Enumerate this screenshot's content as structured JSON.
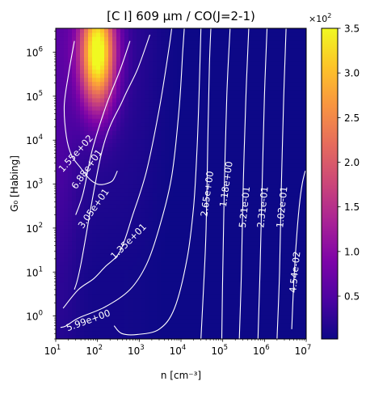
{
  "chart_data": {
    "type": "heatmap",
    "title": "[C I] 609 μm / CO(J=2-1)",
    "xlabel": "n [cm⁻³]",
    "ylabel": "G₀ [Habing]",
    "x_scale": "log",
    "y_scale": "log",
    "xlim": [
      10,
      10000000
    ],
    "ylim": [
      0.3,
      3500000
    ],
    "x_ticks": [
      {
        "value": 10,
        "base": "10",
        "exp": "1"
      },
      {
        "value": 100,
        "base": "10",
        "exp": "2"
      },
      {
        "value": 1000,
        "base": "10",
        "exp": "3"
      },
      {
        "value": 10000,
        "base": "10",
        "exp": "4"
      },
      {
        "value": 100000,
        "base": "10",
        "exp": "5"
      },
      {
        "value": 1000000,
        "base": "10",
        "exp": "6"
      },
      {
        "value": 10000000,
        "base": "10",
        "exp": "7"
      }
    ],
    "y_ticks": [
      {
        "value": 1,
        "base": "10",
        "exp": "0"
      },
      {
        "value": 10,
        "base": "10",
        "exp": "1"
      },
      {
        "value": 100,
        "base": "10",
        "exp": "2"
      },
      {
        "value": 1000,
        "base": "10",
        "exp": "3"
      },
      {
        "value": 10000,
        "base": "10",
        "exp": "4"
      },
      {
        "value": 100000,
        "base": "10",
        "exp": "5"
      },
      {
        "value": 1000000,
        "base": "10",
        "exp": "6"
      }
    ],
    "colorbar": {
      "colormap": "plasma",
      "range": [
        0.02,
        3.5
      ],
      "ticks": [
        "0.5",
        "1.0",
        "1.5",
        "2.0",
        "2.5",
        "3.0",
        "3.5"
      ],
      "tick_values": [
        0.5,
        1.0,
        1.5,
        2.0,
        2.5,
        3.0,
        3.5
      ],
      "multiplier_base": "×10",
      "multiplier_exp": "2"
    },
    "peak": {
      "n": 100,
      "g0": 1000000,
      "value": 350
    },
    "contours": [
      {
        "label": "1.55e+02",
        "value": 155,
        "label_at": [
          30,
          5000
        ],
        "label_angle": -48,
        "points": [
          [
            28,
            1800000
          ],
          [
            20,
            300000
          ],
          [
            16,
            60000
          ],
          [
            18,
            12000
          ],
          [
            24,
            4500
          ],
          [
            40,
            2300
          ],
          [
            65,
            1300
          ],
          [
            100,
            1000
          ],
          [
            150,
            1000
          ],
          [
            230,
            1200
          ],
          [
            300,
            2000
          ]
        ]
      },
      {
        "label": "6.88e+01",
        "value": 68.8,
        "label_at": [
          55,
          2200
        ],
        "label_angle": -55,
        "points": [
          [
            30,
            200
          ],
          [
            45,
            600
          ],
          [
            75,
            6000
          ],
          [
            160,
            60000
          ],
          [
            350,
            400000
          ],
          [
            600,
            1800000
          ]
        ]
      },
      {
        "label": "3.05e+01",
        "value": 30.5,
        "label_at": [
          80,
          280
        ],
        "label_angle": -55,
        "points": [
          [
            28,
            4
          ],
          [
            40,
            15
          ],
          [
            130,
            6000
          ],
          [
            400,
            80000
          ],
          [
            900,
            400000
          ],
          [
            1800,
            2500000
          ]
        ]
      },
      {
        "label": "1.35e+01",
        "value": 13.5,
        "label_at": [
          550,
          50
        ],
        "label_angle": -45,
        "points": [
          [
            15,
            1.5
          ],
          [
            35,
            4
          ],
          [
            80,
            7
          ],
          [
            150,
            13
          ],
          [
            350,
            30
          ],
          [
            700,
            200
          ],
          [
            1500,
            2000
          ],
          [
            3000,
            50000
          ],
          [
            5000,
            1000000
          ],
          [
            6000,
            3500000
          ]
        ]
      },
      {
        "label": "5.99e+00",
        "value": 5.99,
        "label_at": [
          60,
          0.8
        ],
        "label_angle": -20,
        "points": [
          [
            13,
            0.55
          ],
          [
            18,
            0.6
          ],
          [
            35,
            0.9
          ],
          [
            150,
            1.6
          ],
          [
            600,
            4
          ],
          [
            1500,
            15
          ],
          [
            3000,
            100
          ],
          [
            6000,
            1500
          ],
          [
            9000,
            50000
          ],
          [
            11000,
            1000000
          ],
          [
            12000,
            3500000
          ]
        ]
      },
      {
        "label": "",
        "value": 3.5,
        "label_at": null,
        "label_angle": 0,
        "points": [
          [
            250,
            0.6
          ],
          [
            380,
            0.4
          ],
          [
            900,
            0.38
          ],
          [
            3000,
            0.5
          ],
          [
            7000,
            1.5
          ],
          [
            14000,
            20
          ],
          [
            20000,
            300
          ],
          [
            24000,
            5000
          ],
          [
            27000,
            100000
          ],
          [
            30000,
            3500000
          ]
        ]
      },
      {
        "label": "2.65e+00",
        "value": 2.65,
        "label_at": [
          42000,
          600
        ],
        "label_angle": -82,
        "points": [
          [
            30000,
            0.3
          ],
          [
            35000,
            5
          ],
          [
            40000,
            100
          ],
          [
            44000,
            10000
          ],
          [
            48000,
            500000
          ],
          [
            52000,
            3500000
          ]
        ]
      },
      {
        "label": "1.18e+00",
        "value": 1.18,
        "label_at": [
          120000,
          1000
        ],
        "label_angle": -82,
        "points": [
          [
            95000,
            0.3
          ],
          [
            100000,
            10
          ],
          [
            110000,
            1000
          ],
          [
            125000,
            100000
          ],
          [
            150000,
            3500000
          ]
        ]
      },
      {
        "label": "5.21e-01",
        "value": 0.521,
        "label_at": [
          330000,
          300
        ],
        "label_angle": -84,
        "points": [
          [
            250000,
            0.3
          ],
          [
            280000,
            10
          ],
          [
            310000,
            1000
          ],
          [
            360000,
            100000
          ],
          [
            420000,
            3500000
          ]
        ]
      },
      {
        "label": "2.31e-01",
        "value": 0.231,
        "label_at": [
          900000,
          300
        ],
        "label_angle": -84,
        "points": [
          [
            700000,
            0.3
          ],
          [
            780000,
            10
          ],
          [
            880000,
            1000
          ],
          [
            1000000,
            100000
          ],
          [
            1150000,
            3500000
          ]
        ]
      },
      {
        "label": "1.02e-01",
        "value": 0.102,
        "label_at": [
          2600000,
          300
        ],
        "label_angle": -84,
        "points": [
          [
            2000000,
            0.3
          ],
          [
            2300000,
            10
          ],
          [
            2550000,
            1000
          ],
          [
            2900000,
            100000
          ],
          [
            3300000,
            3500000
          ]
        ]
      },
      {
        "label": "4.54e-02",
        "value": 0.0454,
        "label_at": [
          5300000,
          10
        ],
        "label_angle": -84,
        "points": [
          [
            4500000,
            0.5
          ],
          [
            5000000,
            5
          ],
          [
            5800000,
            50
          ],
          [
            6800000,
            300
          ],
          [
            8000000,
            1000
          ],
          [
            9500000,
            2000
          ]
        ]
      }
    ]
  }
}
